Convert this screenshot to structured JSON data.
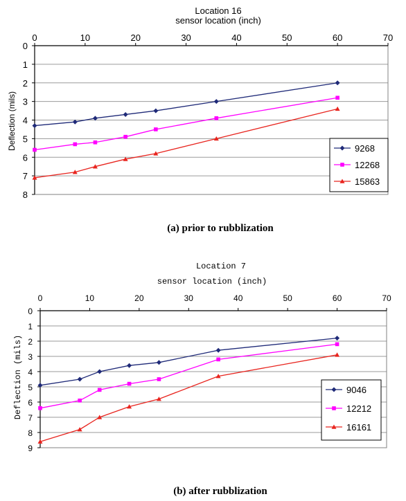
{
  "chart_data": [
    {
      "type": "line",
      "title": "Location 16",
      "xlabel": "sensor location (inch)",
      "ylabel": "Deflection (mils)",
      "caption": "(a) prior to rubblization",
      "xlim": [
        0,
        70
      ],
      "ylim": [
        0,
        8
      ],
      "y_inverted": true,
      "x_axis_position": "top",
      "grid": "horizontal",
      "legend_position": "bottom-right",
      "x_ticks": [
        "0",
        "10",
        "20",
        "30",
        "40",
        "50",
        "60",
        "70"
      ],
      "y_ticks": [
        "0",
        "1",
        "2",
        "3",
        "4",
        "5",
        "6",
        "7",
        "8"
      ],
      "x": [
        0,
        8,
        12,
        18,
        24,
        36,
        60
      ],
      "series": [
        {
          "name": "9268",
          "color": "#1f2a78",
          "marker": "diamond",
          "values": [
            4.3,
            4.1,
            3.9,
            3.7,
            3.5,
            3.0,
            2.0
          ]
        },
        {
          "name": "12268",
          "color": "#ff00ff",
          "marker": "square",
          "values": [
            5.6,
            5.3,
            5.2,
            4.9,
            4.5,
            3.9,
            2.8
          ]
        },
        {
          "name": "15863",
          "color": "#e8241e",
          "marker": "triangle",
          "values": [
            7.1,
            6.8,
            6.5,
            6.1,
            5.8,
            5.0,
            3.4
          ]
        }
      ]
    },
    {
      "type": "line",
      "title": "Location 7",
      "xlabel": "sensor location (inch)",
      "ylabel": "Deflection (mils)",
      "caption": "(b) after rubblization",
      "xlim": [
        0,
        70
      ],
      "ylim": [
        0,
        9
      ],
      "y_inverted": true,
      "x_axis_position": "top",
      "grid": "horizontal",
      "legend_position": "bottom-right",
      "x_ticks": [
        "0",
        "10",
        "20",
        "30",
        "40",
        "50",
        "60",
        "70"
      ],
      "y_ticks": [
        "0",
        "1",
        "2",
        "3",
        "4",
        "5",
        "6",
        "7",
        "8",
        "9"
      ],
      "x": [
        0,
        8,
        12,
        18,
        24,
        36,
        60
      ],
      "series": [
        {
          "name": "9046",
          "color": "#1f2a78",
          "marker": "diamond",
          "values": [
            4.9,
            4.5,
            4.0,
            3.6,
            3.4,
            2.6,
            1.8
          ]
        },
        {
          "name": "12212",
          "color": "#ff00ff",
          "marker": "square",
          "values": [
            6.4,
            5.9,
            5.2,
            4.8,
            4.5,
            3.2,
            2.2
          ]
        },
        {
          "name": "16161",
          "color": "#e8241e",
          "marker": "triangle",
          "values": [
            8.6,
            7.8,
            7.0,
            6.3,
            5.8,
            4.3,
            2.9
          ]
        }
      ]
    }
  ]
}
